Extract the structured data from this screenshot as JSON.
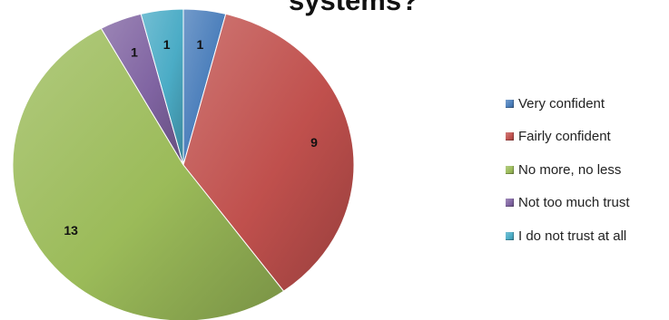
{
  "chart_data": {
    "type": "pie",
    "title": "systems?",
    "categories": [
      "Very confident",
      "Fairly confident",
      "No more, no less",
      "Not too much trust",
      "I do not trust at all"
    ],
    "values": [
      1,
      9,
      13,
      1,
      1
    ],
    "colors": [
      "#4a7ebb",
      "#c0504d",
      "#9bbb59",
      "#8064a2",
      "#4bacc6"
    ],
    "data_labels": [
      "1",
      "9",
      "13",
      "1",
      "1"
    ],
    "legend_position": "right",
    "start_angle_deg": 0,
    "direction": "clockwise"
  }
}
